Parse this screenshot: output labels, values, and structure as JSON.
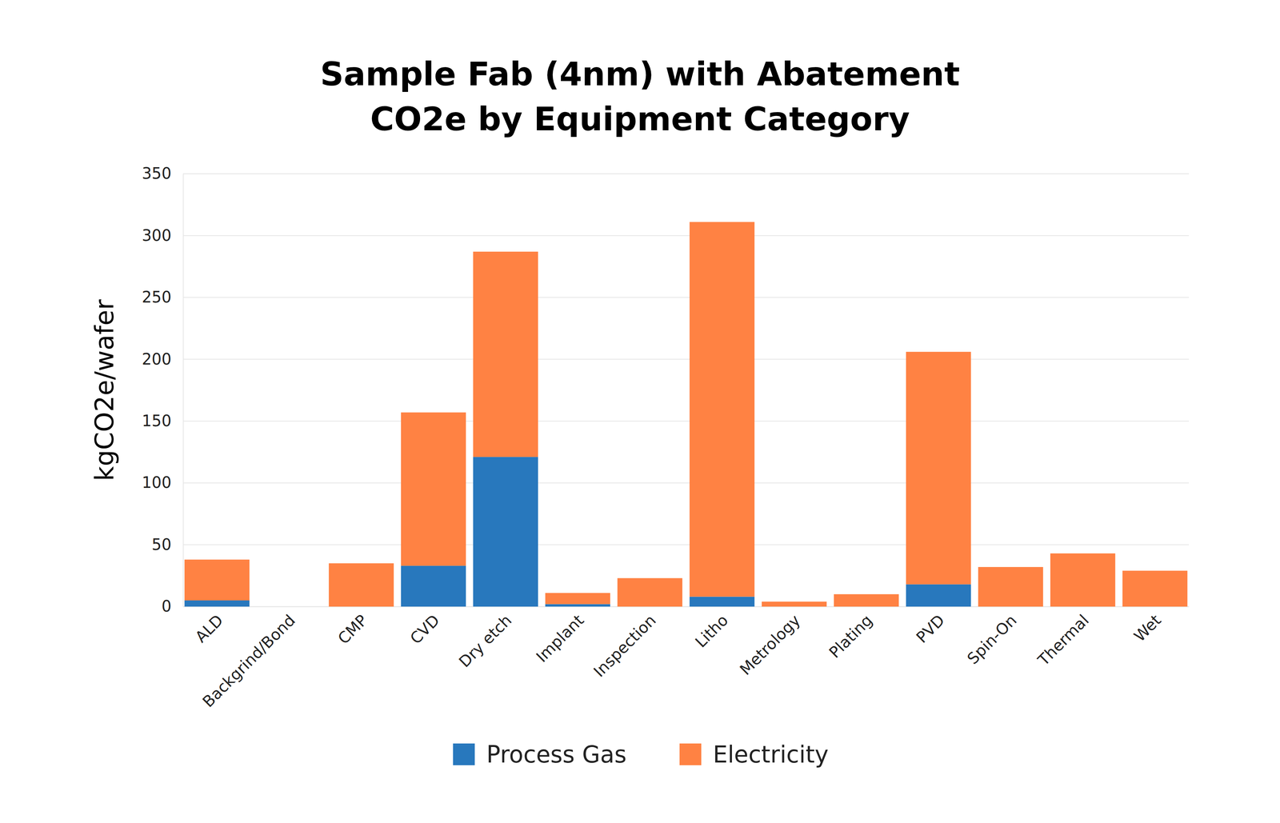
{
  "chart_data": {
    "type": "bar",
    "title": "Sample Fab (4nm) with Abatement\nCO2e by Equipment Category",
    "y_label": "kgCO2e/wafer",
    "categories": [
      "ALD",
      "Backgrind/Bond",
      "CMP",
      "CVD",
      "Dry etch",
      "Implant",
      "Inspection",
      "Litho",
      "Metrology",
      "Plating",
      "PVD",
      "Spin-On",
      "Thermal",
      "Wet"
    ],
    "series": [
      {
        "name": "Process Gas",
        "color": "#2878bd",
        "values": [
          5,
          0,
          0,
          33,
          121,
          2,
          0,
          8,
          0,
          0,
          18,
          0,
          0,
          0
        ]
      },
      {
        "name": "Electricity",
        "color": "#ff8243",
        "values": [
          33,
          0,
          35,
          124,
          166,
          9,
          23,
          303,
          4,
          10,
          188,
          32,
          43,
          29
        ]
      }
    ],
    "stacked": true,
    "grid": true,
    "legend": "bottom",
    "ylim": [
      0,
      350
    ],
    "yticks": [
      0,
      50,
      100,
      150,
      200,
      250,
      300,
      350
    ]
  }
}
